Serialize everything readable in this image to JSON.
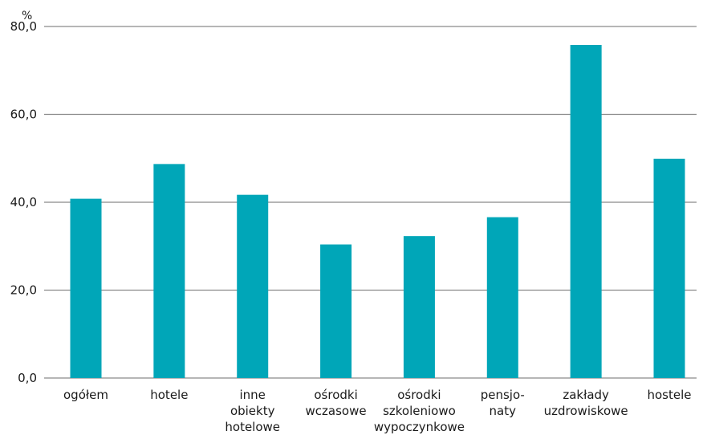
{
  "chart_data": {
    "type": "bar",
    "title": "",
    "xlabel": "",
    "ylabel": "%",
    "ylim": [
      0,
      80
    ],
    "yticks": [
      "0,0",
      "20,0",
      "40,0",
      "60,0",
      "80,0"
    ],
    "grid": true,
    "legend": "none",
    "bar_color": "#00a6b8",
    "grid_color": "#8a8a8a",
    "categories": [
      [
        "ogółem"
      ],
      [
        "hotele"
      ],
      [
        "inne",
        "obiekty",
        "hotelowe"
      ],
      [
        "ośrodki",
        "wczasowe"
      ],
      [
        "ośrodki",
        "szkoleniowo",
        "wypoczynkowe"
      ],
      [
        "pensjo-",
        "naty"
      ],
      [
        "zakłady",
        "uzdrowiskowe"
      ],
      [
        "hostele"
      ]
    ],
    "values": [
      40.8,
      48.7,
      41.7,
      30.4,
      32.3,
      36.6,
      75.8,
      49.9
    ]
  }
}
